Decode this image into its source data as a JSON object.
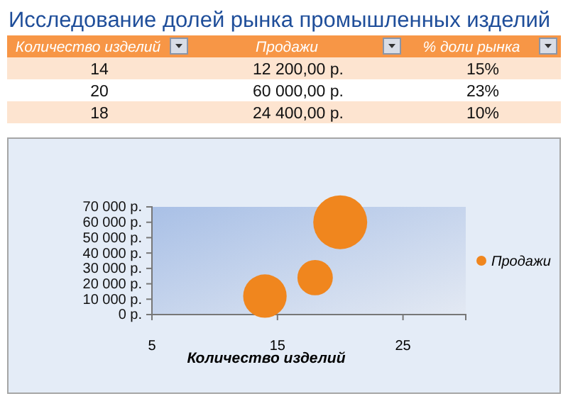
{
  "chart_data": [
    {
      "type": "other",
      "title": "Исследование долей рынка промышленных изделий",
      "annotations": [
        "Количество изделий",
        "Продажи",
        "% доли рынка",
        "14",
        "12 200,00 р.",
        "15%",
        "20",
        "60 000,00 р.",
        "23%",
        "18",
        "24 400,00 р.",
        "10%"
      ]
    },
    {
      "type": "bubble",
      "xlabel": "Количество изделий",
      "x": [
        14,
        20,
        18
      ],
      "series": [
        {
          "name": "Продажи",
          "color": "#f0861e",
          "values": [
            12000,
            60000,
            24000
          ],
          "sizes": [
            0.65,
            1,
            0.43
          ]
        }
      ],
      "xlim": [
        5,
        30
      ],
      "xticks": [
        5,
        15,
        25
      ],
      "ylim": [
        0,
        70000
      ],
      "yticks": [
        {
          "value": 0,
          "label": "0 р."
        },
        {
          "value": 10000,
          "label": "10 000 р."
        },
        {
          "value": 20000,
          "label": "20 000 р."
        },
        {
          "value": 30000,
          "label": "30 000 р."
        },
        {
          "value": 40000,
          "label": "40 000 р."
        },
        {
          "value": 50000,
          "label": "50 000 р."
        },
        {
          "value": 60000,
          "label": "60 000 р."
        },
        {
          "value": 70000,
          "label": "70 000 р."
        }
      ],
      "legend": "right"
    }
  ]
}
